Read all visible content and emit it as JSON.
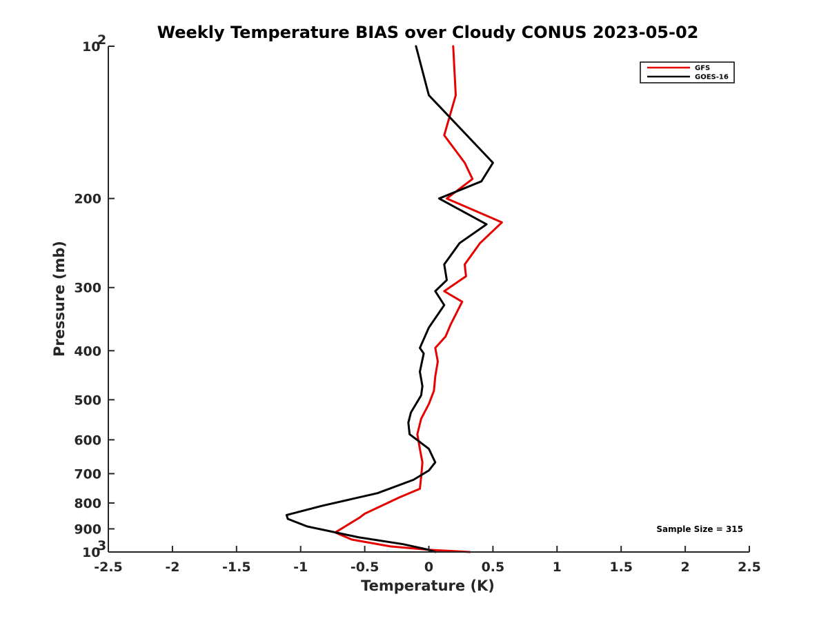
{
  "chart_data": {
    "type": "line",
    "title": "Weekly Temperature BIAS over Cloudy CONUS 2023-05-02",
    "xlabel": "Temperature (K)",
    "ylabel": "Pressure (mb)",
    "xlim": [
      -2.5,
      2.5
    ],
    "ylim": [
      1000,
      100
    ],
    "y_scale": "log",
    "y_reversed": true,
    "grid": false,
    "legend_position": "top-right",
    "x_ticks": [
      "-2.5",
      "-2",
      "-1.5",
      "-1",
      "-0.5",
      "0",
      "0.5",
      "1",
      "1.5",
      "2",
      "2.5"
    ],
    "y_ticks": [
      {
        "value": 100,
        "base": "10",
        "exp": "2",
        "label": ""
      },
      {
        "value": 200,
        "base": "",
        "exp": "",
        "label": "200"
      },
      {
        "value": 300,
        "base": "",
        "exp": "",
        "label": "300"
      },
      {
        "value": 400,
        "base": "",
        "exp": "",
        "label": "400"
      },
      {
        "value": 500,
        "base": "",
        "exp": "",
        "label": "500"
      },
      {
        "value": 600,
        "base": "",
        "exp": "",
        "label": "600"
      },
      {
        "value": 700,
        "base": "",
        "exp": "",
        "label": "700"
      },
      {
        "value": 800,
        "base": "",
        "exp": "",
        "label": "800"
      },
      {
        "value": 900,
        "base": "",
        "exp": "",
        "label": "900"
      },
      {
        "value": 1000,
        "base": "10",
        "exp": "3",
        "label": ""
      }
    ],
    "series": [
      {
        "name": "GFS",
        "color": "#e60000",
        "points": [
          [
            0.19,
            100
          ],
          [
            0.21,
            125
          ],
          [
            0.12,
            150
          ],
          [
            0.28,
            170
          ],
          [
            0.34,
            183
          ],
          [
            0.14,
            200
          ],
          [
            0.57,
            223
          ],
          [
            0.4,
            245
          ],
          [
            0.28,
            270
          ],
          [
            0.29,
            285
          ],
          [
            0.12,
            305
          ],
          [
            0.26,
            320
          ],
          [
            0.17,
            355
          ],
          [
            0.13,
            375
          ],
          [
            0.05,
            395
          ],
          [
            0.07,
            420
          ],
          [
            0.05,
            450
          ],
          [
            0.04,
            480
          ],
          [
            0.0,
            510
          ],
          [
            -0.06,
            545
          ],
          [
            -0.09,
            585
          ],
          [
            -0.07,
            625
          ],
          [
            -0.05,
            665
          ],
          [
            -0.06,
            710
          ],
          [
            -0.07,
            750
          ],
          [
            -0.23,
            780
          ],
          [
            -0.5,
            840
          ],
          [
            -0.54,
            855
          ],
          [
            -0.73,
            915
          ],
          [
            -0.6,
            945
          ],
          [
            -0.3,
            975
          ],
          [
            0.0,
            990
          ],
          [
            0.32,
            1000
          ]
        ]
      },
      {
        "name": "GOES-16",
        "color": "#000000",
        "points": [
          [
            -0.1,
            100
          ],
          [
            0.0,
            125
          ],
          [
            0.5,
            170
          ],
          [
            0.41,
            185
          ],
          [
            0.08,
            200
          ],
          [
            0.45,
            225
          ],
          [
            0.24,
            245
          ],
          [
            0.12,
            270
          ],
          [
            0.14,
            290
          ],
          [
            0.05,
            305
          ],
          [
            0.12,
            325
          ],
          [
            0.0,
            360
          ],
          [
            -0.07,
            395
          ],
          [
            -0.04,
            405
          ],
          [
            -0.07,
            440
          ],
          [
            -0.05,
            470
          ],
          [
            -0.06,
            490
          ],
          [
            -0.14,
            530
          ],
          [
            -0.16,
            555
          ],
          [
            -0.15,
            585
          ],
          [
            0.0,
            625
          ],
          [
            0.05,
            665
          ],
          [
            0.0,
            690
          ],
          [
            -0.12,
            720
          ],
          [
            -0.4,
            765
          ],
          [
            -0.83,
            810
          ],
          [
            -1.11,
            845
          ],
          [
            -1.1,
            860
          ],
          [
            -0.95,
            890
          ],
          [
            -0.55,
            935
          ],
          [
            -0.2,
            965
          ],
          [
            0.0,
            990
          ],
          [
            0.05,
            1000
          ]
        ]
      }
    ],
    "annotation": "Sample Size = 315"
  }
}
